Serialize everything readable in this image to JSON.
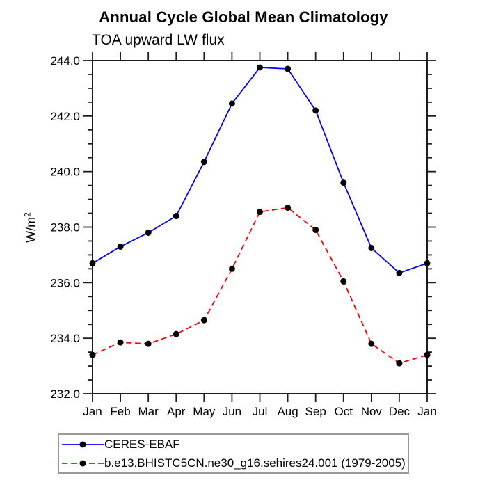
{
  "chart_data": {
    "type": "line",
    "title": "Annual Cycle Global Mean Climatology",
    "subtitle": "TOA upward LW flux",
    "ylabel_base": "W/m",
    "ylabel_sup": "2",
    "x_categories": [
      "Jan",
      "Feb",
      "Mar",
      "Apr",
      "May",
      "Jun",
      "Jul",
      "Aug",
      "Sep",
      "Oct",
      "Nov",
      "Dec",
      "Jan"
    ],
    "ylim": [
      232.0,
      244.0
    ],
    "ytick_major_interval": 2.0,
    "ytick_minor_interval": 0.5,
    "ytick_labels": [
      "232.0",
      "234.0",
      "236.0",
      "238.0",
      "240.0",
      "242.0",
      "244.0"
    ],
    "grid": false,
    "legend_position": "bottom-left",
    "series": [
      {
        "name": "CERES-EBAF",
        "color": "#0000ff",
        "style": "solid",
        "marker": "filled-circle",
        "marker_color": "#000000",
        "values": [
          236.7,
          237.3,
          237.8,
          238.4,
          240.35,
          242.45,
          243.75,
          243.7,
          242.2,
          239.6,
          237.25,
          236.35,
          236.7
        ]
      },
      {
        "name": "b.e13.BHISTC5CN.ne30_g16.sehires24.001 (1979-2005)",
        "color": "#ff0000",
        "style": "dashed",
        "marker": "filled-circle",
        "marker_color": "#000000",
        "values": [
          233.4,
          233.85,
          233.8,
          234.15,
          234.65,
          236.5,
          238.55,
          238.7,
          237.9,
          236.05,
          233.8,
          233.1,
          233.4
        ]
      }
    ]
  },
  "colors": {
    "axis": "#1c1c1c",
    "text": "#000000",
    "legend_border": "#999999",
    "background": "#ffffff"
  }
}
